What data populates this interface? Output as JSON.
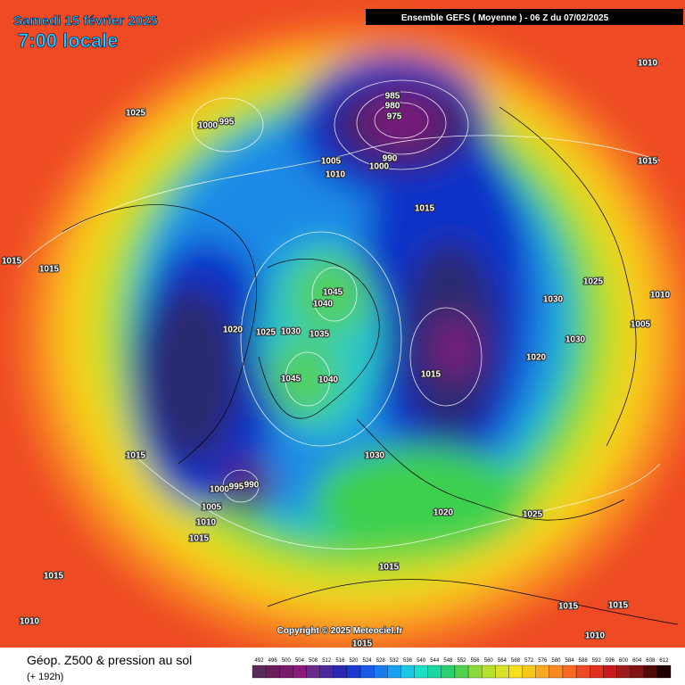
{
  "header": {
    "date": "Samedi 15 février 2025",
    "time": "7:00 locale",
    "model": "Ensemble GEFS  ( Moyenne )  -  06 Z du 07/02/2025"
  },
  "map": {
    "copyright": "Copyright © 2025 Meteociel.fr",
    "isobar_labels": [
      1025,
      1000,
      995,
      985,
      980,
      975,
      990,
      1005,
      1000,
      1010,
      1015,
      1010,
      1015,
      1015,
      1015,
      1025,
      1010,
      1030,
      1005,
      1030,
      1045,
      1040,
      1020,
      1025,
      1030,
      1035,
      1015,
      1020,
      1045,
      1040,
      1015,
      1030,
      1000,
      995,
      990,
      1005,
      1010,
      1015,
      1020,
      1025,
      1015,
      1015,
      1010,
      1015,
      1015,
      1010,
      1015
    ]
  },
  "footer": {
    "title": "Géop. Z500 & pression au sol",
    "lead_time": "(+ 192h)",
    "colorbar": [
      492,
      496,
      500,
      504,
      508,
      512,
      516,
      520,
      524,
      528,
      532,
      536,
      540,
      544,
      548,
      552,
      556,
      560,
      564,
      568,
      572,
      576,
      580,
      584,
      588,
      592,
      596,
      600,
      604,
      608,
      612
    ]
  }
}
